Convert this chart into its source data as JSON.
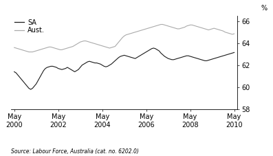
{
  "ylabel": "%",
  "source": "Source: Labour Force, Australia (cat. no. 6202.0)",
  "ylim": [
    58,
    66.5
  ],
  "yticks": [
    58,
    60,
    62,
    64,
    66
  ],
  "xtick_years": [
    2000,
    2002,
    2004,
    2006,
    2008,
    2010
  ],
  "legend_sa": "SA",
  "legend_aust": "Aust.",
  "color_sa": "#1a1a1a",
  "color_aust": "#aaaaaa",
  "sa_data": [
    61.4,
    61.3,
    61.1,
    60.9,
    60.7,
    60.5,
    60.3,
    60.1,
    59.9,
    59.8,
    59.9,
    60.1,
    60.3,
    60.6,
    60.9,
    61.2,
    61.5,
    61.7,
    61.8,
    61.85,
    61.9,
    61.9,
    61.85,
    61.8,
    61.7,
    61.65,
    61.6,
    61.65,
    61.7,
    61.8,
    61.7,
    61.6,
    61.5,
    61.4,
    61.5,
    61.6,
    61.8,
    62.0,
    62.1,
    62.2,
    62.3,
    62.35,
    62.3,
    62.25,
    62.2,
    62.2,
    62.15,
    62.1,
    62.0,
    61.9,
    61.85,
    61.9,
    62.0,
    62.1,
    62.25,
    62.4,
    62.55,
    62.7,
    62.8,
    62.85,
    62.9,
    62.85,
    62.8,
    62.75,
    62.7,
    62.65,
    62.6,
    62.7,
    62.8,
    62.9,
    63.0,
    63.1,
    63.2,
    63.3,
    63.4,
    63.5,
    63.55,
    63.5,
    63.4,
    63.3,
    63.1,
    62.95,
    62.8,
    62.7,
    62.6,
    62.55,
    62.5,
    62.5,
    62.55,
    62.6,
    62.65,
    62.7,
    62.75,
    62.8,
    62.85,
    62.85,
    62.8,
    62.75,
    62.7,
    62.65,
    62.6,
    62.55,
    62.5,
    62.45,
    62.4,
    62.4,
    62.45,
    62.5,
    62.55,
    62.6,
    62.65,
    62.7,
    62.75,
    62.8,
    62.85,
    62.9,
    62.95,
    63.0,
    63.05,
    63.1,
    63.15,
    63.2
  ],
  "aust_data": [
    63.6,
    63.55,
    63.5,
    63.45,
    63.4,
    63.35,
    63.3,
    63.25,
    63.2,
    63.2,
    63.2,
    63.25,
    63.3,
    63.35,
    63.4,
    63.45,
    63.5,
    63.55,
    63.6,
    63.65,
    63.65,
    63.6,
    63.55,
    63.5,
    63.45,
    63.4,
    63.4,
    63.45,
    63.5,
    63.55,
    63.6,
    63.65,
    63.7,
    63.8,
    63.9,
    64.0,
    64.1,
    64.15,
    64.2,
    64.2,
    64.15,
    64.1,
    64.05,
    64.0,
    63.95,
    63.9,
    63.85,
    63.8,
    63.75,
    63.7,
    63.65,
    63.6,
    63.55,
    63.6,
    63.65,
    63.7,
    63.9,
    64.1,
    64.3,
    64.5,
    64.65,
    64.75,
    64.8,
    64.85,
    64.9,
    64.95,
    65.0,
    65.05,
    65.1,
    65.15,
    65.2,
    65.25,
    65.3,
    65.35,
    65.4,
    65.45,
    65.5,
    65.55,
    65.6,
    65.65,
    65.7,
    65.7,
    65.65,
    65.6,
    65.55,
    65.5,
    65.45,
    65.4,
    65.35,
    65.3,
    65.3,
    65.35,
    65.4,
    65.45,
    65.55,
    65.6,
    65.65,
    65.65,
    65.6,
    65.55,
    65.5,
    65.45,
    65.4,
    65.35,
    65.3,
    65.25,
    65.2,
    65.25,
    65.3,
    65.35,
    65.3,
    65.25,
    65.2,
    65.15,
    65.1,
    65.0,
    64.95,
    64.9,
    64.85,
    64.8,
    64.85,
    64.9
  ]
}
